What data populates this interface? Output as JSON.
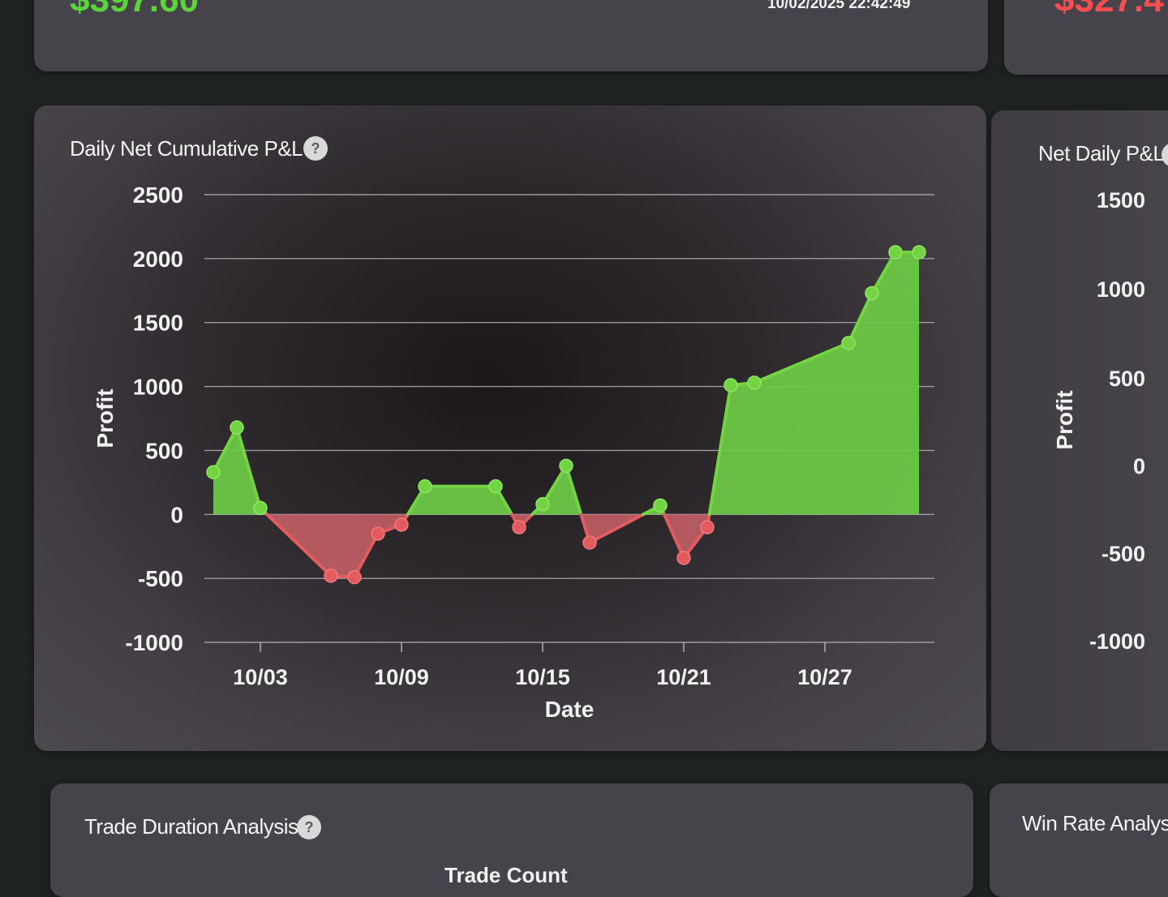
{
  "top_cards": {
    "left_value": "$397.60",
    "timestamp": "10/02/2025 22:42:49",
    "right_value": "$327.4"
  },
  "main_card": {
    "title": "Daily Net Cumulative P&L",
    "help": "?",
    "pos_color": "#72d442",
    "neg_color": "#e35a5f",
    "pos_fill": "#6ecb45",
    "neg_fill": "#d9676d"
  },
  "right_card": {
    "title": "Net Daily P&L",
    "ylabel": "Profit",
    "ticks": [
      "1500",
      "1000",
      "500",
      "0",
      "-500",
      "-1000"
    ]
  },
  "bottom_cards": {
    "left_title": "Trade Duration Analysis",
    "help": "?",
    "left_subtitle": "Trade Count",
    "right_title": "Win Rate Analysis"
  },
  "chart_data": {
    "type": "area",
    "xlabel": "Date",
    "ylabel": "Profit",
    "ylim": [
      -1000,
      2500
    ],
    "yticks": [
      2500,
      2000,
      1500,
      1000,
      500,
      0,
      -500,
      -1000
    ],
    "xticks": [
      "10/03",
      "10/09",
      "10/15",
      "10/21",
      "10/27"
    ],
    "grid": true,
    "series": [
      {
        "x": [
          "10/01",
          "10/02",
          "10/03",
          "10/06",
          "10/07",
          "10/08",
          "10/09",
          "10/10",
          "10/13",
          "10/14",
          "10/15",
          "10/16",
          "10/17",
          "10/20",
          "10/21",
          "10/22",
          "10/23",
          "10/24",
          "10/28",
          "10/29",
          "10/30",
          "10/31"
        ],
        "values": [
          330,
          680,
          50,
          -480,
          -490,
          -150,
          -80,
          220,
          220,
          -100,
          80,
          380,
          -220,
          70,
          -340,
          -100,
          1010,
          1030,
          1340,
          1730,
          2050,
          2050
        ]
      }
    ]
  }
}
